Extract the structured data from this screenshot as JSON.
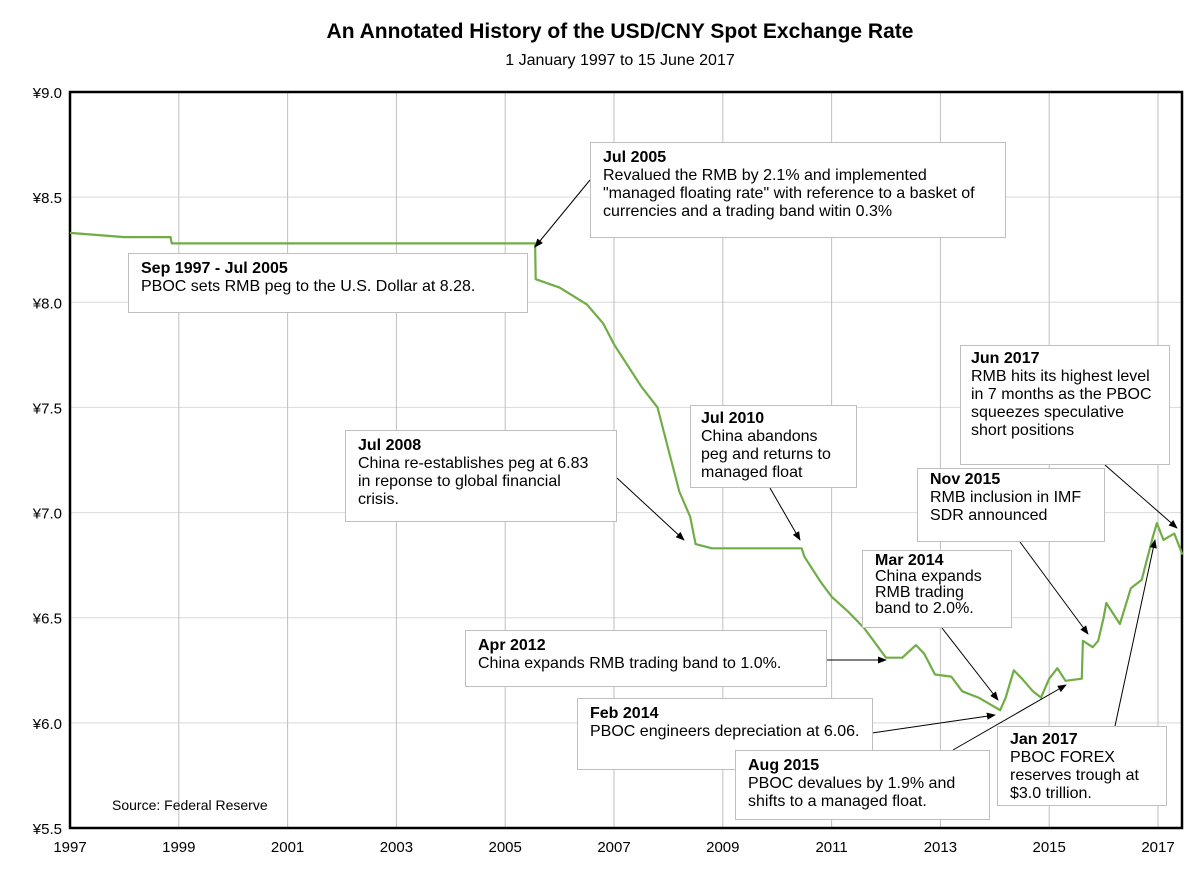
{
  "chart_data": {
    "type": "line",
    "title": "An Annotated History of the USD/CNY Spot Exchange Rate",
    "subtitle": "1 January 1997 to 15 June 2017",
    "source": "Source: Federal Reserve",
    "xlim": [
      1997,
      2017.45
    ],
    "ylim": [
      5.5,
      9.0
    ],
    "x_ticks": [
      "1997",
      "1999",
      "2001",
      "2003",
      "2005",
      "2007",
      "2009",
      "2011",
      "2013",
      "2015",
      "2017"
    ],
    "y_ticks": [
      "¥5.5",
      "¥6.0",
      "¥6.5",
      "¥7.0",
      "¥7.5",
      "¥8.0",
      "¥8.5",
      "¥9.0"
    ],
    "grid": true,
    "line_color": "#70ad47",
    "series": [
      {
        "x": [
          1997.0,
          1997.5,
          1998.0,
          1998.5,
          1998.85,
          1998.87,
          2000,
          2002,
          2004,
          2005.55,
          2005.56,
          2006.0,
          2006.5,
          2006.8,
          2007.0,
          2007.5,
          2007.8,
          2008.0,
          2008.2,
          2008.4,
          2008.5,
          2008.8,
          2009.0,
          2010.0,
          2010.45,
          2010.5,
          2010.8,
          2011.0,
          2011.3,
          2011.6,
          2011.8,
          2012.0,
          2012.3,
          2012.55,
          2012.7,
          2012.9,
          2013.2,
          2013.4,
          2013.7,
          2013.9,
          2014.1,
          2014.2,
          2014.35,
          2014.5,
          2014.7,
          2014.85,
          2015.0,
          2015.15,
          2015.3,
          2015.6,
          2015.62,
          2015.8,
          2015.9,
          2016.0,
          2016.05,
          2016.3,
          2016.5,
          2016.7,
          2016.9,
          2016.98,
          2017.1,
          2017.3,
          2017.45
        ],
        "y": [
          8.33,
          8.32,
          8.31,
          8.31,
          8.31,
          8.28,
          8.28,
          8.28,
          8.28,
          8.28,
          8.11,
          8.07,
          7.99,
          7.9,
          7.8,
          7.6,
          7.5,
          7.3,
          7.1,
          6.98,
          6.85,
          6.83,
          6.83,
          6.83,
          6.83,
          6.79,
          6.67,
          6.6,
          6.53,
          6.45,
          6.38,
          6.31,
          6.31,
          6.37,
          6.33,
          6.23,
          6.22,
          6.15,
          6.12,
          6.09,
          6.06,
          6.12,
          6.25,
          6.21,
          6.15,
          6.12,
          6.21,
          6.26,
          6.2,
          6.21,
          6.39,
          6.36,
          6.39,
          6.5,
          6.57,
          6.47,
          6.64,
          6.68,
          6.88,
          6.95,
          6.87,
          6.9,
          6.8
        ]
      }
    ],
    "annotations": [
      {
        "title": "Jul 2005",
        "text": "Revalued the RMB by 2.1% and implemented \"managed floating rate\" with reference to a basket of currencies and a trading band witin 0.3%"
      },
      {
        "title": "Sep 1997 - Jul 2005",
        "text": "PBOC sets RMB peg to the U.S. Dollar at 8.28."
      },
      {
        "title": "Jul 2008",
        "text": "China re-establishes peg at 6.83 in reponse to global financial crisis."
      },
      {
        "title": "Jul 2010",
        "text": "China abandons peg and returns to managed float"
      },
      {
        "title": "Jun 2017",
        "text": "RMB hits its highest level in 7 months as the PBOC squeezes speculative short positions"
      },
      {
        "title": "Nov 2015",
        "text": "RMB inclusion in IMF SDR announced"
      },
      {
        "title": "Mar 2014",
        "text": "China expands RMB trading band to 2.0%."
      },
      {
        "title": "Apr 2012",
        "text": "China expands RMB trading band to 1.0%."
      },
      {
        "title": "Feb 2014",
        "text": "PBOC engineers depreciation at 6.06."
      },
      {
        "title": "Aug 2015",
        "text": "PBOC devalues by 1.9% and shifts to a managed float."
      },
      {
        "title": "Jan 2017",
        "text": "PBOC FOREX reserves trough at $3.0 trillion."
      }
    ]
  }
}
